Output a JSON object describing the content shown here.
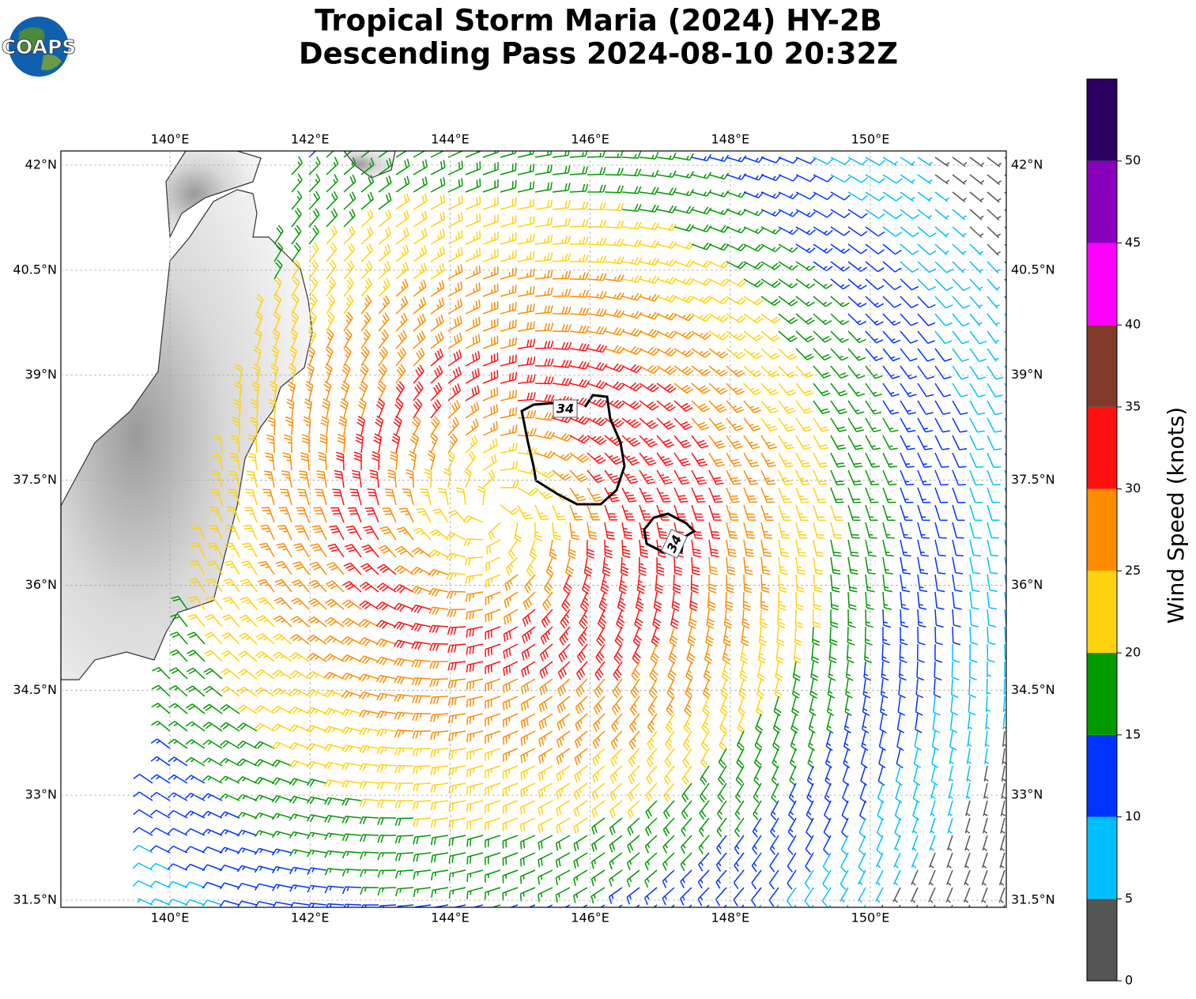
{
  "header": {
    "logo": "COAPS",
    "title": [
      "Tropical Storm Maria (2024) HY-2B",
      "Descending Pass 2024-08-10 20:32Z"
    ]
  },
  "map": {
    "lon_ticks": [
      "140°E",
      "142°E",
      "144°E",
      "146°E",
      "148°E",
      "150°E"
    ],
    "lat_ticks": [
      "42°N",
      "40.5°N",
      "39°N",
      "37.5°N",
      "36°N",
      "34.5°N",
      "33°N",
      "31.5°N"
    ],
    "contour_labels": [
      "34",
      "34"
    ]
  },
  "colorbar": {
    "label": "Wind Speed (knots)",
    "ticks": [
      0,
      5,
      10,
      15,
      20,
      25,
      30,
      35,
      40,
      45,
      50
    ],
    "colors": [
      "#555555",
      "#00bfff",
      "#0033ff",
      "#009900",
      "#ffd20f",
      "#ff8c00",
      "#ff1010",
      "#7f3a2a",
      "#ff00ff",
      "#8800bb",
      "#2a0060"
    ]
  }
}
